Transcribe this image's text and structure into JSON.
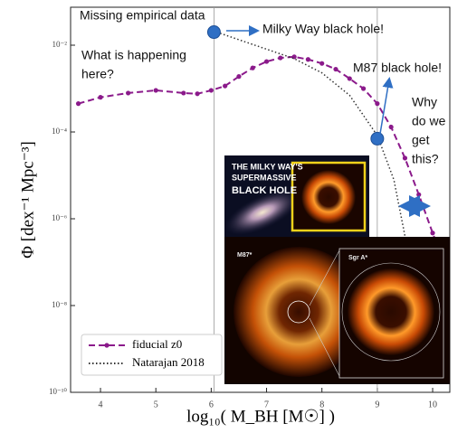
{
  "chart_data": {
    "type": "line",
    "xlabel": "log₁₀( M_BH [M☉] )",
    "ylabel": "Φ [dex⁻¹ Mpc⁻³]",
    "log_y": true,
    "xlim": [
      3.46,
      10.31
    ],
    "ylim": [
      1e-10,
      0.075
    ],
    "xticks": [
      4,
      5,
      6,
      7,
      8,
      9,
      10
    ],
    "yticks": [
      {
        "value": 1e-10,
        "label": "10⁻¹⁰"
      },
      {
        "value": 1e-08,
        "label": "10⁻⁸"
      },
      {
        "value": 1e-06,
        "label": "10⁻⁶"
      },
      {
        "value": 0.0001,
        "label": "10⁻⁴"
      },
      {
        "value": 0.01,
        "label": "10⁻²"
      }
    ],
    "legend": "lower left",
    "series": [
      {
        "name": "fiducial z0",
        "color": "#8b1a8b",
        "style": "dashed-markers",
        "x": [
          3.6,
          4.0,
          4.5,
          5.0,
          5.5,
          5.75,
          6.0,
          6.25,
          6.5,
          6.75,
          7.0,
          7.25,
          7.5,
          7.75,
          8.0,
          8.25,
          8.5,
          8.75,
          9.0,
          9.25,
          9.5,
          9.75,
          10.0,
          10.2
        ],
        "values": [
          0.00045,
          0.00063,
          0.00079,
          0.00091,
          0.00079,
          0.00076,
          0.00091,
          0.00115,
          0.0019,
          0.003,
          0.0042,
          0.0051,
          0.0054,
          0.0047,
          0.0038,
          0.0028,
          0.0017,
          0.001,
          0.00045,
          0.00013,
          2.5e-05,
          3.6e-06,
          4.7e-07,
          1e-07
        ]
      },
      {
        "name": "Natarajan 2018",
        "color": "#333333",
        "style": "dotted",
        "x": [
          6.1,
          7.5,
          8.0,
          8.5,
          9.0,
          9.3,
          9.5
        ],
        "values": [
          0.02,
          0.0049,
          0.0023,
          0.0007,
          8.3e-05,
          7.9e-06,
          4e-07
        ]
      }
    ],
    "highlights": [
      {
        "x": 6.05,
        "value": 0.02
      },
      {
        "x": 9.0,
        "value": 7e-05
      }
    ],
    "annotations": [
      [
        "Missing empirical data"
      ],
      [
        "Milky Way black hole!"
      ],
      [
        "What is happening",
        "here?"
      ],
      [
        "M87 black hole!"
      ],
      [
        "Why",
        "do we",
        "get",
        "this?"
      ]
    ],
    "inset_texts": [
      "THE MILKY WAY'S",
      "SUPERMASSIVE",
      "BLACK HOLE",
      "M87*",
      "Sgr A*"
    ]
  }
}
